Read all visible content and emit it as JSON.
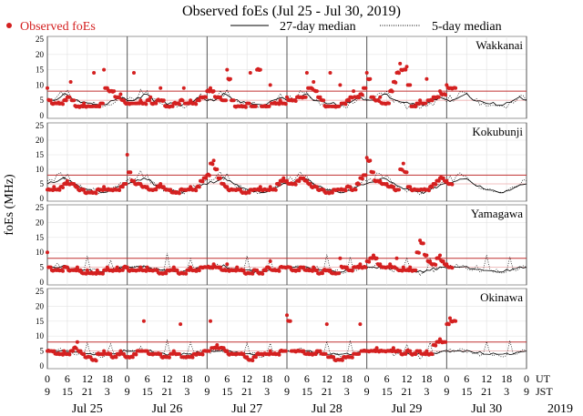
{
  "chart_data": {
    "type": "scatter",
    "title": "Observed foEs (Jul 25 - Jul 30, 2019)",
    "ylabel": "foEs (MHz)",
    "ylim": [
      0,
      25
    ],
    "yticks": [
      0,
      5,
      10,
      15,
      20,
      25
    ],
    "threshold_mhz": 8,
    "legend": {
      "placement": "top",
      "observed": "Observed foEs",
      "median27": "27-day median",
      "median5": "5-day median"
    },
    "colors": {
      "observed": "#d42020",
      "threshold": "#c03030",
      "median": "#000000"
    },
    "x_hours_ut_start": 0,
    "x_days": 6,
    "ut_ticks": [
      "0",
      "6",
      "12",
      "18",
      "0",
      "6",
      "12",
      "18",
      "0",
      "6",
      "12",
      "18",
      "0",
      "6",
      "12",
      "18",
      "0",
      "6",
      "12",
      "18",
      "0",
      "6",
      "12",
      "18",
      "0"
    ],
    "jst_ticks": [
      "9",
      "15",
      "21",
      "3",
      "9",
      "15",
      "21",
      "3",
      "9",
      "15",
      "21",
      "3",
      "9",
      "15",
      "21",
      "3",
      "9",
      "15",
      "21",
      "3",
      "9",
      "15",
      "21",
      "3",
      "9"
    ],
    "ut_label": "UT",
    "jst_label": "JST",
    "dates": [
      "Jul 25",
      "Jul 26",
      "Jul 27",
      "Jul 28",
      "Jul 29",
      "Jul 30"
    ],
    "year": "2019",
    "stations": [
      {
        "name": "Wakkanai",
        "observed_hourly": [
          9,
          5,
          4,
          4,
          4,
          5,
          6,
          11,
          5,
          3,
          3,
          4,
          3,
          3,
          14,
          3,
          4,
          15,
          9,
          8,
          8,
          6,
          7,
          5,
          4,
          4,
          14,
          4,
          5,
          4,
          5,
          6,
          4,
          5,
          9,
          5,
          3,
          3,
          4,
          4,
          5,
          9,
          4,
          5,
          4,
          5,
          6,
          6,
          8,
          9,
          8,
          6,
          6,
          5,
          15,
          12,
          5,
          3,
          3,
          3,
          4,
          14,
          3,
          15,
          15,
          3,
          3,
          10,
          4,
          4,
          5,
          4,
          6,
          5,
          5,
          6,
          6,
          6,
          14,
          9,
          11,
          8,
          6,
          5,
          3,
          14,
          3,
          3,
          10,
          4,
          5,
          6,
          8,
          6,
          7,
          9,
          14,
          12,
          6,
          5,
          6,
          4,
          4,
          8,
          11,
          14,
          17,
          15,
          16,
          10,
          3,
          4,
          5,
          4,
          12,
          5,
          6,
          6,
          8,
          7,
          10,
          9,
          9
        ],
        "median27_daily": [
          5,
          5,
          5,
          5.5,
          6,
          7,
          7,
          6,
          5,
          5,
          4.5,
          4.5,
          4,
          4,
          4,
          3.5,
          3.5,
          3.5,
          4,
          4.5,
          5,
          5.5,
          6,
          5.5
        ],
        "median5_daily": [
          5,
          6,
          5,
          6,
          8,
          7,
          8,
          6,
          5,
          5,
          4,
          4,
          3,
          3,
          4,
          3,
          3,
          3,
          3,
          4,
          4,
          5,
          7,
          6
        ]
      },
      {
        "name": "Kokubunji",
        "observed_hourly": [
          3,
          3,
          4,
          3,
          4,
          5,
          6,
          5,
          5,
          4,
          3,
          3,
          2,
          2,
          2,
          3,
          3,
          4,
          3,
          3,
          3,
          3,
          4,
          5,
          15,
          9,
          6,
          5,
          5,
          4,
          4,
          3,
          3,
          4,
          5,
          4,
          3,
          3,
          2,
          2,
          3,
          3,
          3,
          4,
          3,
          4,
          6,
          7,
          8,
          12,
          13,
          10,
          7,
          5,
          4,
          3,
          3,
          3,
          3,
          2,
          2,
          3,
          3,
          3,
          4,
          3,
          3,
          4,
          3,
          5,
          6,
          7,
          6,
          5,
          5,
          6,
          7,
          7,
          6,
          5,
          4,
          4,
          3,
          3,
          2,
          2,
          3,
          3,
          3,
          3,
          4,
          4,
          3,
          5,
          7,
          8,
          14,
          13,
          9,
          6,
          6,
          5,
          5,
          4,
          4,
          3,
          10,
          12,
          9,
          4,
          3,
          3,
          3,
          3,
          3,
          4,
          5,
          6,
          7,
          7,
          6,
          5
        ],
        "median27_daily": [
          5,
          5.5,
          5.5,
          6,
          6.5,
          7,
          6.5,
          6,
          5,
          4.5,
          4,
          3.5,
          3,
          3,
          2.5,
          2.5,
          2,
          2,
          2.5,
          3,
          3.5,
          4,
          4.5,
          5
        ],
        "median5_daily": [
          6,
          7,
          6,
          8,
          9,
          7,
          8,
          6,
          5,
          4,
          4,
          3,
          3,
          3,
          3,
          2,
          2,
          2,
          3,
          3,
          4,
          4,
          5,
          6
        ]
      },
      {
        "name": "Yamagawa",
        "observed_hourly": [
          10,
          5,
          4,
          4,
          4,
          5,
          5,
          4,
          4,
          5,
          4,
          3,
          4,
          3,
          3,
          4,
          3,
          4,
          5,
          4,
          4,
          5,
          4,
          5,
          5,
          4,
          4,
          4,
          5,
          4,
          5,
          4,
          4,
          4,
          3,
          3,
          4,
          4,
          5,
          4,
          3,
          3,
          4,
          5,
          4,
          4,
          5,
          5,
          5,
          5,
          6,
          5,
          5,
          4,
          6,
          4,
          4,
          5,
          4,
          4,
          3,
          3,
          4,
          4,
          3,
          4,
          5,
          7,
          4,
          4,
          5,
          5,
          5,
          5,
          4,
          4,
          5,
          5,
          4,
          4,
          5,
          4,
          3,
          4,
          4,
          4,
          3,
          3,
          8,
          5,
          5,
          4,
          5,
          5,
          6,
          5,
          7,
          8,
          9,
          8,
          6,
          5,
          5,
          6,
          5,
          8,
          4,
          5,
          4,
          5,
          4,
          10,
          14,
          13,
          9,
          7,
          6,
          8,
          9,
          7,
          6,
          5
        ],
        "median27_daily": [
          5,
          5,
          5,
          5,
          5,
          5.5,
          5,
          4.5,
          4.5,
          4.5,
          4,
          4,
          4,
          4,
          3.5,
          3.5,
          3.5,
          3.5,
          4,
          4,
          4.5,
          4.5,
          5,
          5
        ],
        "median5_daily": [
          5,
          5,
          5,
          6,
          5,
          5,
          5,
          4,
          4,
          5,
          4,
          4,
          9,
          4,
          4,
          4,
          3,
          3,
          4,
          8,
          4,
          4,
          5,
          5
        ]
      },
      {
        "name": "Okinawa",
        "observed_hourly": [
          5,
          5,
          5,
          4,
          4,
          5,
          4,
          5,
          6,
          8,
          5,
          4,
          3,
          3,
          2,
          4,
          4,
          5,
          4,
          4,
          3,
          4,
          5,
          4,
          3,
          3,
          4,
          5,
          5,
          15,
          5,
          4,
          4,
          4,
          4,
          3,
          3,
          4,
          5,
          4,
          14,
          3,
          3,
          3,
          4,
          4,
          4,
          5,
          5,
          15,
          6,
          7,
          6,
          6,
          5,
          4,
          4,
          4,
          4,
          4,
          3,
          2,
          3,
          4,
          4,
          4,
          4,
          5,
          4,
          4,
          5,
          5,
          17,
          15,
          5,
          5,
          5,
          5,
          4,
          4,
          4,
          5,
          5,
          4,
          14,
          3,
          3,
          2,
          2,
          3,
          3,
          3,
          4,
          4,
          14,
          5,
          5,
          5,
          5,
          6,
          5,
          5,
          5,
          5,
          6,
          5,
          5,
          4,
          5,
          5,
          4,
          5,
          5,
          4,
          5,
          4,
          7,
          8,
          9,
          8,
          14,
          16,
          15
        ],
        "median27_daily": [
          5,
          5,
          5,
          5,
          5,
          5,
          5,
          5,
          4.5,
          4.5,
          4.5,
          4,
          4,
          4,
          4,
          4,
          4,
          4,
          4,
          4,
          4,
          4.5,
          4.5,
          5
        ],
        "median5_daily": [
          5,
          5,
          5,
          5,
          6,
          5,
          5,
          5,
          4,
          4,
          4,
          4,
          8,
          4,
          4,
          4,
          3,
          3,
          4,
          8,
          4,
          4,
          5,
          5
        ]
      }
    ]
  }
}
